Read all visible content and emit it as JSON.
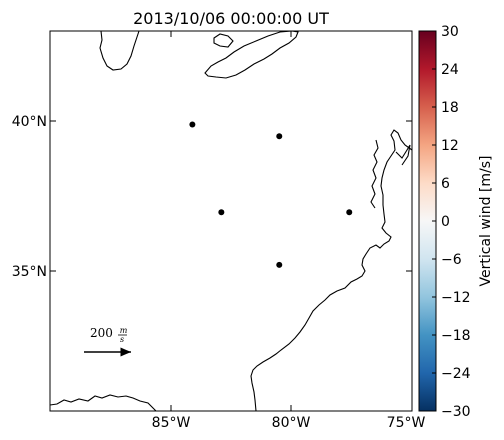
{
  "map": {
    "title": "2013/10/06 00:00:00 UT",
    "lon_ticks": [
      {
        "value": -85,
        "label": "85°W"
      },
      {
        "value": -80,
        "label": "80°W"
      },
      {
        "value": -75,
        "label": "75°W"
      }
    ],
    "lat_ticks": [
      {
        "value": 40,
        "label": "40°N"
      },
      {
        "value": 35,
        "label": "35°N"
      }
    ],
    "extent": {
      "lon_min": -90,
      "lon_max": -75,
      "lat_min": 30,
      "lat_max": 43
    },
    "stations": [
      {
        "lon": -84.1,
        "lat": 39.8
      },
      {
        "lon": -80.5,
        "lat": 39.4
      },
      {
        "lon": -82.9,
        "lat": 36.8
      },
      {
        "lon": -77.6,
        "lat": 36.8
      },
      {
        "lon": -80.5,
        "lat": 35.0
      }
    ],
    "scale_arrow": {
      "label_value": "200",
      "label_unit_num": "m",
      "label_unit_den": "s"
    },
    "colors": {
      "land_outline": "#000000",
      "station": "#000000",
      "frame": "#000000"
    }
  },
  "colorbar": {
    "label": "Vertical wind [m/s]",
    "min": -30,
    "max": 30,
    "ticks": [
      "30",
      "24",
      "18",
      "12",
      "6",
      "0",
      "−6",
      "−12",
      "−18",
      "−24",
      "−30"
    ],
    "colormap": [
      "#053061",
      "#2166ac",
      "#4393c3",
      "#92c5de",
      "#d1e5f0",
      "#f7f7f7",
      "#fddbc7",
      "#f4a582",
      "#d6604d",
      "#b2182b",
      "#67001f"
    ]
  }
}
